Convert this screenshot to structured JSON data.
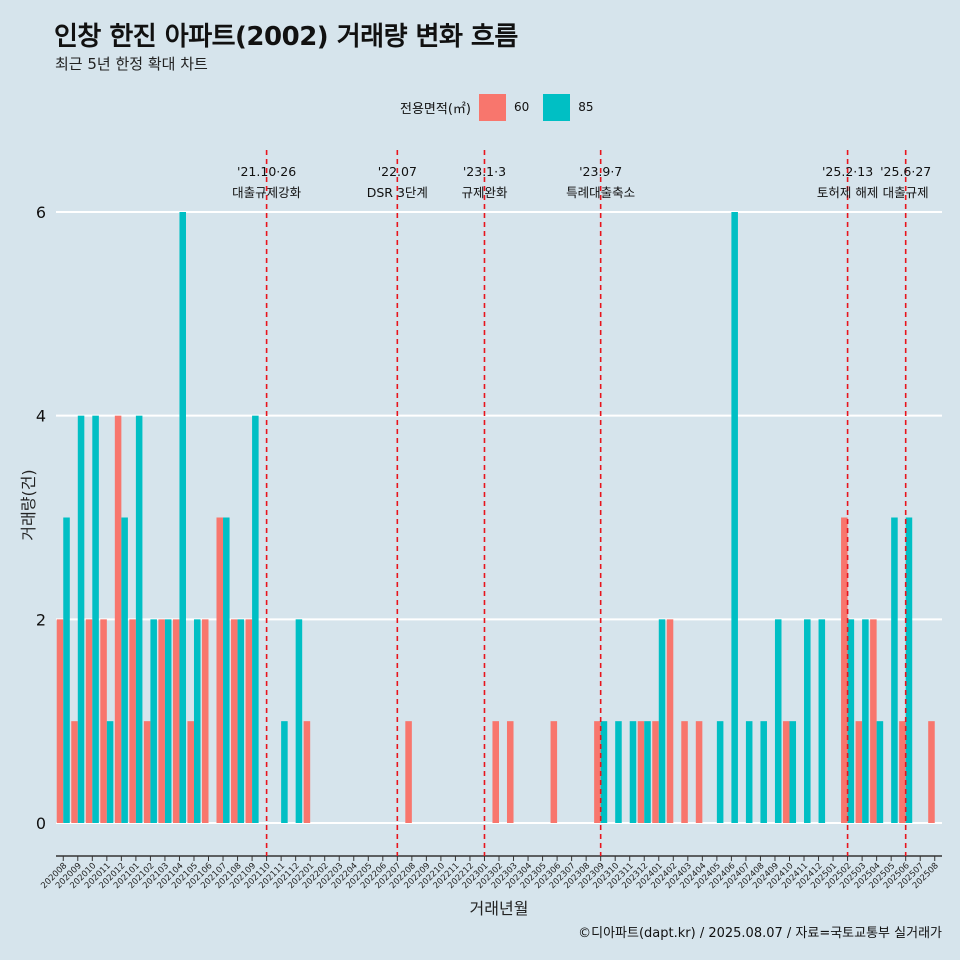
{
  "header": {
    "title": "인창 한진 아파트(2002) 거래량 변화 흐름",
    "subtitle": "최근 5년 한정 확대 차트"
  },
  "legend": {
    "title": "전용면적(㎡)",
    "items": [
      {
        "label": "60",
        "color": "#f8766d"
      },
      {
        "label": "85",
        "color": "#00bfc4"
      }
    ]
  },
  "caption": "©디아파트(dapt.kr) / 2025.08.07 / 자료=국토교통부 실거래가",
  "chart_data": {
    "type": "bar",
    "title": "인창 한진 아파트(2002) 거래량 변화 흐름",
    "subtitle": "최근 5년 한정 확대 차트",
    "xlabel": "거래년월",
    "ylabel": "거래량(건)",
    "ylim": [
      0,
      6
    ],
    "yticks": [
      0,
      2,
      4,
      6
    ],
    "grid": "horizontal",
    "legend_position": "top",
    "categories": [
      "202008",
      "202009",
      "202010",
      "202011",
      "202012",
      "202101",
      "202102",
      "202103",
      "202104",
      "202105",
      "202106",
      "202107",
      "202108",
      "202109",
      "202110",
      "202111",
      "202112",
      "202201",
      "202202",
      "202203",
      "202204",
      "202205",
      "202206",
      "202207",
      "202208",
      "202209",
      "202210",
      "202211",
      "202212",
      "202301",
      "202302",
      "202303",
      "202304",
      "202305",
      "202306",
      "202307",
      "202308",
      "202309",
      "202310",
      "202311",
      "202312",
      "202401",
      "202402",
      "202403",
      "202404",
      "202405",
      "202406",
      "202407",
      "202408",
      "202409",
      "202410",
      "202411",
      "202412",
      "202501",
      "202502",
      "202503",
      "202504",
      "202505",
      "202506",
      "202507",
      "202508"
    ],
    "series": [
      {
        "name": "60",
        "color": "#f8766d",
        "values": [
          2,
          1,
          2,
          2,
          4,
          2,
          1,
          2,
          2,
          1,
          2,
          3,
          2,
          2,
          0,
          0,
          0,
          1,
          0,
          0,
          0,
          0,
          0,
          0,
          1,
          0,
          0,
          0,
          0,
          0,
          1,
          1,
          0,
          0,
          1,
          0,
          0,
          1,
          0,
          0,
          1,
          1,
          2,
          1,
          1,
          0,
          0,
          0,
          0,
          0,
          1,
          0,
          0,
          0,
          3,
          1,
          2,
          0,
          1,
          0,
          1
        ]
      },
      {
        "name": "85",
        "color": "#00bfc4",
        "values": [
          3,
          4,
          4,
          1,
          3,
          4,
          2,
          2,
          6,
          2,
          0,
          3,
          2,
          4,
          0,
          1,
          2,
          0,
          0,
          0,
          0,
          0,
          0,
          0,
          0,
          0,
          0,
          0,
          0,
          0,
          0,
          0,
          0,
          0,
          0,
          0,
          0,
          1,
          1,
          1,
          1,
          2,
          0,
          0,
          0,
          1,
          6,
          1,
          1,
          2,
          1,
          2,
          2,
          0,
          2,
          2,
          1,
          3,
          3,
          0,
          0
        ]
      }
    ],
    "event_lines": [
      {
        "date": "'21.10·26",
        "label": "대출규제강화",
        "at": "202110",
        "offset": 0.0
      },
      {
        "date": "'22.07",
        "label": "DSR 3단계",
        "at": "202207",
        "offset": 0.0
      },
      {
        "date": "'23.1·3",
        "label": "규제완화",
        "at": "202301",
        "offset": 0.0
      },
      {
        "date": "'23.9·7",
        "label": "특례대출축소",
        "at": "202309",
        "offset": 0.0
      },
      {
        "date": "'25.2·13",
        "label": "토허제 해제",
        "at": "202502",
        "offset": 0.0
      },
      {
        "date": "'25.6·27",
        "label": "대출규제",
        "at": "202506",
        "offset": 0.0
      }
    ]
  }
}
